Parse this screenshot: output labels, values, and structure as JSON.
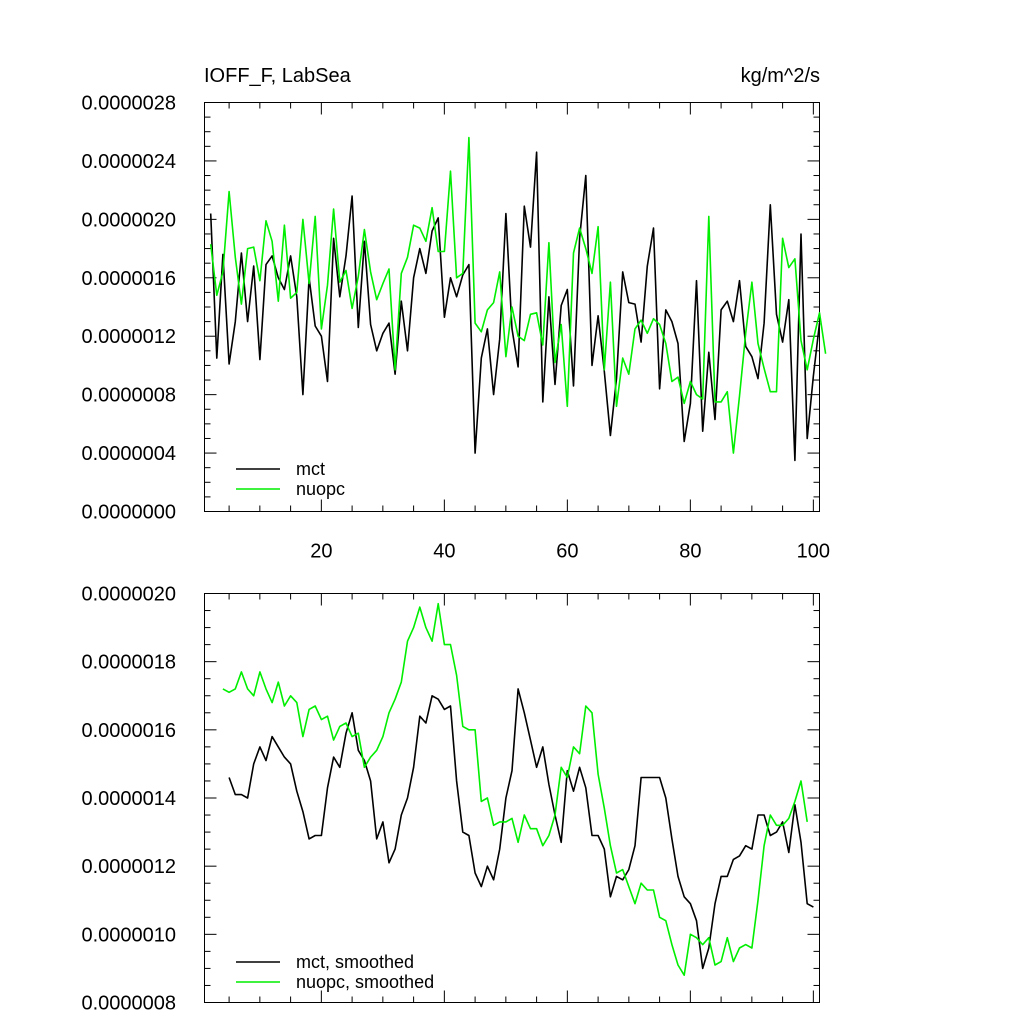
{
  "chart_data": [
    {
      "type": "line",
      "title_left": "IOFF_F, LabSea",
      "title_right": "kg/m^2/s",
      "xlim": [
        1,
        101
      ],
      "ylim": [
        0,
        2.8e-06
      ],
      "x_tick_labels": [
        "20",
        "40",
        "60",
        "80",
        "100"
      ],
      "x_tick_values": [
        20,
        40,
        60,
        80,
        100
      ],
      "y_tick_labels": [
        "0.0000000",
        "0.0000004",
        "0.0000008",
        "0.0000012",
        "0.0000016",
        "0.0000020",
        "0.0000024",
        "0.0000028"
      ],
      "legend": [
        "mct",
        "nuopc"
      ],
      "legend_position": "bottom-left",
      "series": [
        {
          "name": "mct",
          "color": "#000000",
          "x_start": 2,
          "values": [
            2.04,
            1.05,
            1.76,
            1.01,
            1.3,
            1.77,
            1.3,
            1.68,
            1.04,
            1.69,
            1.75,
            1.6,
            1.52,
            1.75,
            1.47,
            0.8,
            1.6,
            1.27,
            1.2,
            0.89,
            1.87,
            1.47,
            1.75,
            2.16,
            1.26,
            1.85,
            1.28,
            1.1,
            1.22,
            1.29,
            0.94,
            1.44,
            1.1,
            1.6,
            1.8,
            1.63,
            1.92,
            2.01,
            1.33,
            1.6,
            1.47,
            1.62,
            1.69,
            0.4,
            1.05,
            1.25,
            0.8,
            1.18,
            2.04,
            1.25,
            0.99,
            2.09,
            1.81,
            2.46,
            0.75,
            1.47,
            0.87,
            1.41,
            1.52,
            0.86,
            1.87,
            2.3,
            1.0,
            1.34,
            0.96,
            0.52,
            0.91,
            1.64,
            1.43,
            1.42,
            1.16,
            1.68,
            1.94,
            0.84,
            1.38,
            1.3,
            1.15,
            0.48,
            0.74,
            1.58,
            0.55,
            1.09,
            0.63,
            1.38,
            1.44,
            1.3,
            1.58,
            1.13,
            1.06,
            0.91,
            1.29,
            2.1,
            1.35,
            1.16,
            1.45,
            0.35,
            1.9,
            0.5,
            0.93,
            1.29
          ]
        },
        {
          "name": "nuopc",
          "color": "#00ee00",
          "x_start": 2,
          "values": [
            1.83,
            1.48,
            1.64,
            2.19,
            1.74,
            1.42,
            1.8,
            1.81,
            1.58,
            1.99,
            1.85,
            1.44,
            1.96,
            1.46,
            1.5,
            2.0,
            1.56,
            2.02,
            1.25,
            1.55,
            2.07,
            1.57,
            1.65,
            1.39,
            1.61,
            1.93,
            1.64,
            1.45,
            1.56,
            1.66,
            0.97,
            1.63,
            1.74,
            1.96,
            1.94,
            1.85,
            2.08,
            1.78,
            1.78,
            2.33,
            1.6,
            1.63,
            2.56,
            1.29,
            1.23,
            1.38,
            1.43,
            1.64,
            1.06,
            1.4,
            1.2,
            1.17,
            1.35,
            1.36,
            1.14,
            1.84,
            1.02,
            1.28,
            0.72,
            1.77,
            1.94,
            1.8,
            1.63,
            1.95,
            0.97,
            1.57,
            0.72,
            1.05,
            0.94,
            1.25,
            1.31,
            1.22,
            1.32,
            1.28,
            1.15,
            0.89,
            0.92,
            0.74,
            0.89,
            0.8,
            0.77,
            2.02,
            0.75,
            0.75,
            0.82,
            0.4,
            0.79,
            1.22,
            1.57,
            1.15,
            0.98,
            0.82,
            0.82,
            1.87,
            1.67,
            1.73,
            1.17,
            0.97,
            1.18,
            1.36,
            1.08
          ]
        }
      ]
    },
    {
      "type": "line",
      "xlim": [
        1,
        101
      ],
      "ylim": [
        8e-07,
        2e-06
      ],
      "x_tick_values": [
        20,
        40,
        60,
        80,
        100
      ],
      "y_tick_labels": [
        "0.0000008",
        "0.0000010",
        "0.0000012",
        "0.0000014",
        "0.0000016",
        "0.0000018",
        "0.0000020"
      ],
      "legend": [
        "mct, smoothed",
        "nuopc, smoothed"
      ],
      "legend_position": "bottom-left",
      "series": [
        {
          "name": "mct, smoothed",
          "color": "#000000",
          "x_start": 5,
          "values": [
            1.46,
            1.41,
            1.41,
            1.4,
            1.5,
            1.55,
            1.51,
            1.58,
            1.55,
            1.52,
            1.5,
            1.42,
            1.36,
            1.28,
            1.29,
            1.29,
            1.43,
            1.52,
            1.49,
            1.59,
            1.65,
            1.54,
            1.51,
            1.45,
            1.28,
            1.33,
            1.21,
            1.25,
            1.35,
            1.4,
            1.49,
            1.64,
            1.62,
            1.7,
            1.69,
            1.66,
            1.67,
            1.45,
            1.3,
            1.29,
            1.18,
            1.14,
            1.2,
            1.16,
            1.25,
            1.4,
            1.48,
            1.72,
            1.65,
            1.57,
            1.49,
            1.55,
            1.44,
            1.35,
            1.27,
            1.48,
            1.42,
            1.49,
            1.43,
            1.29,
            1.29,
            1.25,
            1.11,
            1.17,
            1.16,
            1.19,
            1.26,
            1.46,
            1.46,
            1.46,
            1.46,
            1.4,
            1.28,
            1.17,
            1.11,
            1.09,
            1.04,
            0.9,
            0.96,
            1.09,
            1.17,
            1.17,
            1.22,
            1.23,
            1.26,
            1.25,
            1.35,
            1.35,
            1.29,
            1.3,
            1.33,
            1.24,
            1.38,
            1.27,
            1.09,
            1.08
          ]
        },
        {
          "name": "nuopc, smoothed",
          "color": "#00ee00",
          "x_start": 4,
          "values": [
            1.72,
            1.71,
            1.72,
            1.77,
            1.72,
            1.7,
            1.77,
            1.72,
            1.68,
            1.74,
            1.67,
            1.7,
            1.68,
            1.58,
            1.66,
            1.67,
            1.63,
            1.64,
            1.57,
            1.61,
            1.62,
            1.58,
            1.59,
            1.49,
            1.52,
            1.54,
            1.58,
            1.65,
            1.69,
            1.74,
            1.86,
            1.9,
            1.96,
            1.9,
            1.86,
            1.97,
            1.85,
            1.85,
            1.76,
            1.61,
            1.6,
            1.6,
            1.39,
            1.4,
            1.32,
            1.33,
            1.33,
            1.34,
            1.27,
            1.35,
            1.31,
            1.31,
            1.26,
            1.29,
            1.35,
            1.49,
            1.46,
            1.55,
            1.53,
            1.67,
            1.65,
            1.47,
            1.37,
            1.26,
            1.18,
            1.19,
            1.14,
            1.09,
            1.15,
            1.13,
            1.13,
            1.05,
            1.04,
            0.97,
            0.91,
            0.88,
            1.0,
            0.99,
            0.97,
            0.99,
            0.91,
            0.92,
            0.99,
            0.92,
            0.96,
            0.97,
            0.96,
            1.1,
            1.26,
            1.35,
            1.32,
            1.32,
            1.34,
            1.39,
            1.45,
            1.33
          ]
        }
      ]
    }
  ]
}
